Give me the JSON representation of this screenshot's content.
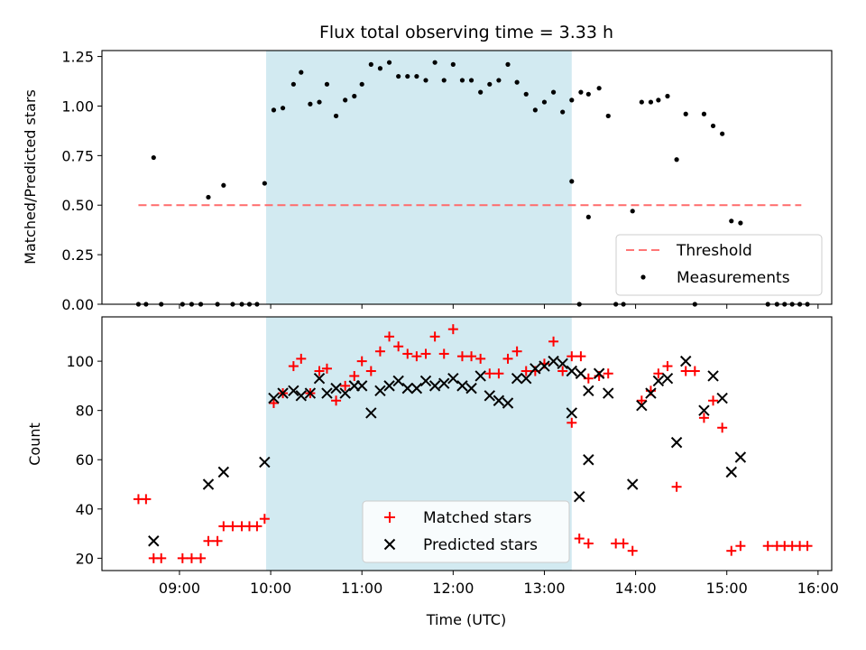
{
  "chart_data": [
    {
      "type": "scatter",
      "title": "Flux total observing time = 3.33 h",
      "xlabel": "",
      "ylabel": "Matched/Predicted stars",
      "ylim": [
        0,
        1.28
      ],
      "yticks": [
        "0.00",
        "0.25",
        "0.50",
        "0.75",
        "1.00",
        "1.25"
      ],
      "ytick_values": [
        0,
        0.25,
        0.5,
        0.75,
        1.0,
        1.25
      ],
      "xlim": [
        "08:09",
        "16:09"
      ],
      "shaded_span": {
        "start": "09:57",
        "end": "13:18",
        "color": "#add8e6"
      },
      "threshold": {
        "name": "Threshold",
        "value": 0.5,
        "x_start": "08:33",
        "x_end": "15:49",
        "color": "#ff6b6b"
      },
      "legend": {
        "position": "lower right",
        "entries": [
          {
            "label": "Threshold",
            "type": "dashed-line",
            "color": "#ff7777"
          },
          {
            "label": "Measurements",
            "type": "dot",
            "color": "#000000"
          }
        ]
      },
      "series": [
        {
          "name": "Measurements",
          "color": "#000000",
          "points": [
            [
              "08:33",
              0
            ],
            [
              "08:38",
              0
            ],
            [
              "08:43",
              0.74
            ],
            [
              "08:48",
              0
            ],
            [
              "09:02",
              0
            ],
            [
              "09:08",
              0
            ],
            [
              "09:14",
              0
            ],
            [
              "09:19",
              0.54
            ],
            [
              "09:25",
              0
            ],
            [
              "09:29",
              0.6
            ],
            [
              "09:35",
              0
            ],
            [
              "09:41",
              0
            ],
            [
              "09:46",
              0
            ],
            [
              "09:51",
              0
            ],
            [
              "09:56",
              0.61
            ],
            [
              "10:02",
              0.98
            ],
            [
              "10:08",
              0.99
            ],
            [
              "10:15",
              1.11
            ],
            [
              "10:20",
              1.17
            ],
            [
              "10:26",
              1.01
            ],
            [
              "10:32",
              1.02
            ],
            [
              "10:37",
              1.11
            ],
            [
              "10:43",
              0.95
            ],
            [
              "10:49",
              1.03
            ],
            [
              "10:55",
              1.05
            ],
            [
              "11:00",
              1.11
            ],
            [
              "11:06",
              1.21
            ],
            [
              "11:12",
              1.19
            ],
            [
              "11:18",
              1.22
            ],
            [
              "11:24",
              1.15
            ],
            [
              "11:30",
              1.15
            ],
            [
              "11:36",
              1.15
            ],
            [
              "11:42",
              1.13
            ],
            [
              "11:48",
              1.22
            ],
            [
              "11:54",
              1.13
            ],
            [
              "12:00",
              1.21
            ],
            [
              "12:06",
              1.13
            ],
            [
              "12:12",
              1.13
            ],
            [
              "12:18",
              1.07
            ],
            [
              "12:24",
              1.11
            ],
            [
              "12:30",
              1.13
            ],
            [
              "12:36",
              1.21
            ],
            [
              "12:42",
              1.12
            ],
            [
              "12:48",
              1.06
            ],
            [
              "12:54",
              0.98
            ],
            [
              "13:00",
              1.02
            ],
            [
              "13:06",
              1.07
            ],
            [
              "13:12",
              0.97
            ],
            [
              "13:18",
              1.03
            ],
            [
              "13:24",
              1.07
            ],
            [
              "13:29",
              1.06
            ],
            [
              "13:36",
              1.09
            ],
            [
              "13:42",
              0.95
            ],
            [
              "13:18",
              0.62
            ],
            [
              "13:23",
              0
            ],
            [
              "13:29",
              0.44
            ],
            [
              "13:47",
              0
            ],
            [
              "13:52",
              0
            ],
            [
              "13:58",
              0.47
            ],
            [
              "14:04",
              1.02
            ],
            [
              "14:10",
              1.02
            ],
            [
              "14:15",
              1.03
            ],
            [
              "14:21",
              1.05
            ],
            [
              "14:27",
              0.73
            ],
            [
              "14:33",
              0.96
            ],
            [
              "14:39",
              0
            ],
            [
              "14:45",
              0.96
            ],
            [
              "14:51",
              0.9
            ],
            [
              "14:57",
              0.86
            ],
            [
              "15:03",
              0.42
            ],
            [
              "15:09",
              0.41
            ],
            [
              "15:27",
              0
            ],
            [
              "15:33",
              0
            ],
            [
              "15:38",
              0
            ],
            [
              "15:43",
              0
            ],
            [
              "15:48",
              0
            ],
            [
              "15:53",
              0
            ]
          ]
        }
      ]
    },
    {
      "type": "scatter",
      "title": "",
      "xlabel": "Time (UTC)",
      "ylabel": "Count",
      "ylim": [
        15,
        118
      ],
      "yticks": [
        "20",
        "40",
        "60",
        "80",
        "100"
      ],
      "ytick_values": [
        20,
        40,
        60,
        80,
        100
      ],
      "xticks": [
        "09:00",
        "10:00",
        "11:00",
        "12:00",
        "13:00",
        "14:00",
        "15:00",
        "16:00"
      ],
      "xlim": [
        "08:09",
        "16:09"
      ],
      "shaded_span": {
        "start": "09:57",
        "end": "13:18",
        "color": "#add8e6"
      },
      "legend": {
        "position": "lower center",
        "entries": [
          {
            "label": "Matched stars",
            "type": "plus",
            "color": "#ff0000"
          },
          {
            "label": "Predicted stars",
            "type": "x",
            "color": "#000000"
          }
        ]
      },
      "series": [
        {
          "name": "Matched stars",
          "marker": "plus",
          "color": "#ff0000",
          "points": [
            [
              "08:33",
              44
            ],
            [
              "08:38",
              44
            ],
            [
              "08:43",
              20
            ],
            [
              "08:48",
              20
            ],
            [
              "09:02",
              20
            ],
            [
              "09:08",
              20
            ],
            [
              "09:14",
              20
            ],
            [
              "09:19",
              27
            ],
            [
              "09:25",
              27
            ],
            [
              "09:29",
              33
            ],
            [
              "09:35",
              33
            ],
            [
              "09:41",
              33
            ],
            [
              "09:46",
              33
            ],
            [
              "09:51",
              33
            ],
            [
              "09:56",
              36
            ],
            [
              "10:02",
              83
            ],
            [
              "10:08",
              87
            ],
            [
              "10:15",
              98
            ],
            [
              "10:20",
              101
            ],
            [
              "10:26",
              87
            ],
            [
              "10:32",
              96
            ],
            [
              "10:37",
              97
            ],
            [
              "10:43",
              84
            ],
            [
              "10:49",
              90
            ],
            [
              "10:55",
              94
            ],
            [
              "11:00",
              100
            ],
            [
              "11:06",
              96
            ],
            [
              "11:12",
              104
            ],
            [
              "11:18",
              110
            ],
            [
              "11:24",
              106
            ],
            [
              "11:30",
              103
            ],
            [
              "11:36",
              102
            ],
            [
              "11:42",
              103
            ],
            [
              "11:48",
              110
            ],
            [
              "11:54",
              103
            ],
            [
              "12:00",
              113
            ],
            [
              "12:06",
              102
            ],
            [
              "12:12",
              102
            ],
            [
              "12:18",
              101
            ],
            [
              "12:24",
              95
            ],
            [
              "12:30",
              95
            ],
            [
              "12:36",
              101
            ],
            [
              "12:42",
              104
            ],
            [
              "12:48",
              96
            ],
            [
              "12:54",
              96
            ],
            [
              "13:00",
              99
            ],
            [
              "13:06",
              108
            ],
            [
              "13:12",
              96
            ],
            [
              "13:18",
              102
            ],
            [
              "13:24",
              102
            ],
            [
              "13:29",
              93
            ],
            [
              "13:36",
              94
            ],
            [
              "13:42",
              95
            ],
            [
              "13:18",
              75
            ],
            [
              "13:23",
              28
            ],
            [
              "13:29",
              26
            ],
            [
              "13:47",
              26
            ],
            [
              "13:52",
              26
            ],
            [
              "13:58",
              23
            ],
            [
              "14:04",
              84
            ],
            [
              "14:10",
              88
            ],
            [
              "14:15",
              95
            ],
            [
              "14:21",
              98
            ],
            [
              "14:27",
              49
            ],
            [
              "14:33",
              96
            ],
            [
              "14:39",
              96
            ],
            [
              "14:45",
              77
            ],
            [
              "14:51",
              84
            ],
            [
              "14:57",
              73
            ],
            [
              "15:03",
              23
            ],
            [
              "15:09",
              25
            ],
            [
              "15:27",
              25
            ],
            [
              "15:33",
              25
            ],
            [
              "15:38",
              25
            ],
            [
              "15:43",
              25
            ],
            [
              "15:48",
              25
            ],
            [
              "15:53",
              25
            ]
          ]
        },
        {
          "name": "Predicted stars",
          "marker": "x",
          "color": "#000000",
          "points": [
            [
              "08:43",
              27
            ],
            [
              "09:19",
              50
            ],
            [
              "09:29",
              55
            ],
            [
              "09:56",
              59
            ],
            [
              "10:02",
              85
            ],
            [
              "10:08",
              87
            ],
            [
              "10:15",
              88
            ],
            [
              "10:20",
              86
            ],
            [
              "10:26",
              87
            ],
            [
              "10:32",
              93
            ],
            [
              "10:37",
              87
            ],
            [
              "10:43",
              89
            ],
            [
              "10:49",
              87
            ],
            [
              "10:55",
              90
            ],
            [
              "11:00",
              90
            ],
            [
              "11:06",
              79
            ],
            [
              "11:12",
              88
            ],
            [
              "11:18",
              90
            ],
            [
              "11:24",
              92
            ],
            [
              "11:30",
              89
            ],
            [
              "11:36",
              89
            ],
            [
              "11:42",
              92
            ],
            [
              "11:48",
              90
            ],
            [
              "11:54",
              91
            ],
            [
              "12:00",
              93
            ],
            [
              "12:06",
              90
            ],
            [
              "12:12",
              89
            ],
            [
              "12:18",
              94
            ],
            [
              "12:24",
              86
            ],
            [
              "12:30",
              84
            ],
            [
              "12:36",
              83
            ],
            [
              "12:42",
              93
            ],
            [
              "12:48",
              93
            ],
            [
              "12:54",
              97
            ],
            [
              "13:00",
              98
            ],
            [
              "13:06",
              100
            ],
            [
              "13:12",
              99
            ],
            [
              "13:18",
              96
            ],
            [
              "13:24",
              95
            ],
            [
              "13:29",
              88
            ],
            [
              "13:36",
              95
            ],
            [
              "13:42",
              87
            ],
            [
              "13:18",
              79
            ],
            [
              "13:23",
              45
            ],
            [
              "13:29",
              60
            ],
            [
              "13:58",
              50
            ],
            [
              "14:04",
              82
            ],
            [
              "14:10",
              87
            ],
            [
              "14:15",
              92
            ],
            [
              "14:21",
              93
            ],
            [
              "14:27",
              67
            ],
            [
              "14:33",
              100
            ],
            [
              "14:45",
              80
            ],
            [
              "14:51",
              94
            ],
            [
              "14:57",
              85
            ],
            [
              "15:03",
              55
            ],
            [
              "15:09",
              61
            ]
          ]
        }
      ]
    }
  ]
}
